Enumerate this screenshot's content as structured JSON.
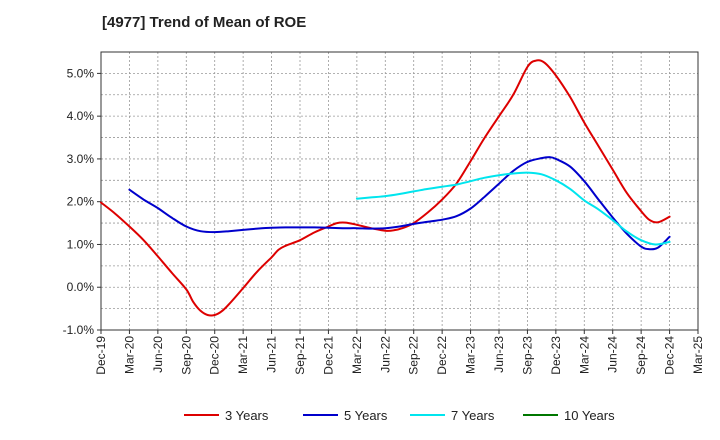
{
  "title": "[4977]  Trend of Mean of ROE",
  "chart_data": {
    "type": "line",
    "title": "[4977]  Trend of Mean of ROE",
    "xlabel": "",
    "ylabel": "",
    "ylim": [
      -1.0,
      5.5
    ],
    "yticks": [
      -1.0,
      0.0,
      1.0,
      2.0,
      3.0,
      4.0,
      5.0
    ],
    "ytick_labels": [
      "-1.0%",
      "0.0%",
      "1.0%",
      "2.0%",
      "3.0%",
      "4.0%",
      "5.0%"
    ],
    "xtick_labels": [
      "Dec-19",
      "Mar-20",
      "Jun-20",
      "Sep-20",
      "Dec-20",
      "Mar-21",
      "Jun-21",
      "Sep-21",
      "Dec-21",
      "Mar-22",
      "Jun-22",
      "Sep-22",
      "Dec-22",
      "Mar-23",
      "Jun-23",
      "Sep-23",
      "Dec-23",
      "Mar-24",
      "Jun-24",
      "Sep-24",
      "Dec-24",
      "Mar-25"
    ],
    "grid": true,
    "legend_position": "bottom",
    "series": [
      {
        "name": "3 Years",
        "color": "#dd0000",
        "points": [
          [
            0,
            1.98
          ],
          [
            0.5,
            1.72
          ],
          [
            1,
            1.42
          ],
          [
            1.5,
            1.1
          ],
          [
            2,
            0.72
          ],
          [
            2.5,
            0.33
          ],
          [
            3,
            -0.05
          ],
          [
            3.25,
            -0.35
          ],
          [
            3.5,
            -0.55
          ],
          [
            3.75,
            -0.65
          ],
          [
            4,
            -0.65
          ],
          [
            4.25,
            -0.56
          ],
          [
            4.5,
            -0.4
          ],
          [
            5,
            -0.02
          ],
          [
            5.5,
            0.37
          ],
          [
            6,
            0.7
          ],
          [
            6.25,
            0.88
          ],
          [
            6.5,
            0.97
          ],
          [
            7,
            1.1
          ],
          [
            7.5,
            1.28
          ],
          [
            8,
            1.42
          ],
          [
            8.3,
            1.5
          ],
          [
            8.6,
            1.51
          ],
          [
            9,
            1.46
          ],
          [
            9.5,
            1.38
          ],
          [
            10,
            1.32
          ],
          [
            10.3,
            1.33
          ],
          [
            10.6,
            1.38
          ],
          [
            11,
            1.5
          ],
          [
            11.5,
            1.75
          ],
          [
            12,
            2.05
          ],
          [
            12.5,
            2.42
          ],
          [
            13,
            2.95
          ],
          [
            13.5,
            3.5
          ],
          [
            14,
            4.0
          ],
          [
            14.5,
            4.5
          ],
          [
            15,
            5.15
          ],
          [
            15.3,
            5.3
          ],
          [
            15.6,
            5.25
          ],
          [
            16,
            4.95
          ],
          [
            16.5,
            4.45
          ],
          [
            17,
            3.85
          ],
          [
            17.5,
            3.3
          ],
          [
            18,
            2.75
          ],
          [
            18.5,
            2.2
          ],
          [
            19,
            1.78
          ],
          [
            19.3,
            1.57
          ],
          [
            19.6,
            1.52
          ],
          [
            20,
            1.65
          ]
        ]
      },
      {
        "name": "5 Years",
        "color": "#0000cc",
        "points": [
          [
            1,
            2.28
          ],
          [
            1.5,
            2.05
          ],
          [
            2,
            1.85
          ],
          [
            2.5,
            1.62
          ],
          [
            3,
            1.42
          ],
          [
            3.5,
            1.31
          ],
          [
            4,
            1.29
          ],
          [
            4.5,
            1.31
          ],
          [
            5,
            1.34
          ],
          [
            5.5,
            1.37
          ],
          [
            6,
            1.39
          ],
          [
            6.5,
            1.4
          ],
          [
            7,
            1.4
          ],
          [
            7.5,
            1.4
          ],
          [
            8,
            1.39
          ],
          [
            8.5,
            1.38
          ],
          [
            9,
            1.38
          ],
          [
            9.5,
            1.37
          ],
          [
            10,
            1.38
          ],
          [
            10.5,
            1.42
          ],
          [
            11,
            1.48
          ],
          [
            11.5,
            1.53
          ],
          [
            12,
            1.58
          ],
          [
            12.5,
            1.66
          ],
          [
            13,
            1.84
          ],
          [
            13.5,
            2.12
          ],
          [
            14,
            2.42
          ],
          [
            14.5,
            2.72
          ],
          [
            15,
            2.93
          ],
          [
            15.5,
            3.02
          ],
          [
            15.8,
            3.04
          ],
          [
            16,
            3.0
          ],
          [
            16.5,
            2.82
          ],
          [
            17,
            2.48
          ],
          [
            17.5,
            2.05
          ],
          [
            18,
            1.63
          ],
          [
            18.5,
            1.25
          ],
          [
            19,
            0.95
          ],
          [
            19.3,
            0.89
          ],
          [
            19.6,
            0.93
          ],
          [
            20,
            1.18
          ]
        ]
      },
      {
        "name": "7 Years",
        "color": "#00e5ee",
        "points": [
          [
            9,
            2.07
          ],
          [
            9.5,
            2.1
          ],
          [
            10,
            2.13
          ],
          [
            10.5,
            2.18
          ],
          [
            11,
            2.24
          ],
          [
            11.5,
            2.3
          ],
          [
            12,
            2.35
          ],
          [
            12.5,
            2.4
          ],
          [
            13,
            2.48
          ],
          [
            13.5,
            2.56
          ],
          [
            14,
            2.62
          ],
          [
            14.5,
            2.66
          ],
          [
            15,
            2.68
          ],
          [
            15.5,
            2.64
          ],
          [
            16,
            2.5
          ],
          [
            16.5,
            2.3
          ],
          [
            17,
            2.03
          ],
          [
            17.5,
            1.82
          ],
          [
            18,
            1.57
          ],
          [
            18.5,
            1.3
          ],
          [
            19,
            1.1
          ],
          [
            19.5,
            1.0
          ],
          [
            20,
            1.06
          ]
        ]
      },
      {
        "name": "10 Years",
        "color": "#007700",
        "points": []
      }
    ]
  }
}
